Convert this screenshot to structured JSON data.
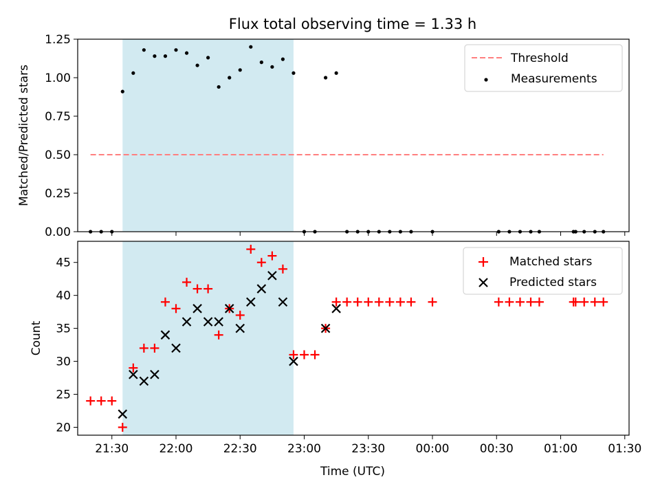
{
  "chart_data": {
    "title": "Flux total observing time = 1.33 h",
    "xlabel": "Time (UTC)",
    "x_ticks": [
      "21:30",
      "22:00",
      "22:30",
      "23:00",
      "23:30",
      "00:00",
      "00:30",
      "01:00",
      "01:30"
    ],
    "x_range": [
      "21:14",
      "01:32"
    ],
    "shaded_interval": [
      "21:35",
      "22:55"
    ],
    "colors": {
      "shade": "#add8e6",
      "threshold": "#ff7f7f",
      "measurements": "#000000",
      "matched": "#ff0000",
      "predicted": "#000000"
    },
    "panels": [
      {
        "type": "scatter",
        "ylabel": "Matched/Predicted stars",
        "ylim": [
          0.0,
          1.25
        ],
        "y_ticks": [
          "0.00",
          "0.25",
          "0.50",
          "0.75",
          "1.00",
          "1.25"
        ],
        "legend": {
          "position": "top-right",
          "entries": [
            "Threshold",
            "Measurements"
          ]
        },
        "threshold": {
          "name": "Threshold",
          "y": 0.5,
          "x_start": "21:20",
          "x_end": "01:20"
        },
        "series": [
          {
            "name": "Measurements",
            "points": [
              [
                "21:20",
                0.0
              ],
              [
                "21:25",
                0.0
              ],
              [
                "21:30",
                0.0
              ],
              [
                "21:35",
                0.91
              ],
              [
                "21:40",
                1.03
              ],
              [
                "21:45",
                1.18
              ],
              [
                "21:50",
                1.14
              ],
              [
                "21:55",
                1.14
              ],
              [
                "22:00",
                1.18
              ],
              [
                "22:05",
                1.16
              ],
              [
                "22:10",
                1.08
              ],
              [
                "22:15",
                1.13
              ],
              [
                "22:20",
                0.94
              ],
              [
                "22:25",
                1.0
              ],
              [
                "22:30",
                1.05
              ],
              [
                "22:35",
                1.2
              ],
              [
                "22:40",
                1.1
              ],
              [
                "22:45",
                1.07
              ],
              [
                "22:50",
                1.12
              ],
              [
                "22:55",
                1.03
              ],
              [
                "23:00",
                0.0
              ],
              [
                "23:05",
                0.0
              ],
              [
                "23:10",
                1.0
              ],
              [
                "23:15",
                1.03
              ],
              [
                "23:20",
                0.0
              ],
              [
                "23:25",
                0.0
              ],
              [
                "23:30",
                0.0
              ],
              [
                "23:35",
                0.0
              ],
              [
                "23:40",
                0.0
              ],
              [
                "23:45",
                0.0
              ],
              [
                "23:50",
                0.0
              ],
              [
                "00:00",
                0.0
              ],
              [
                "00:31",
                0.0
              ],
              [
                "00:36",
                0.0
              ],
              [
                "00:41",
                0.0
              ],
              [
                "00:46",
                0.0
              ],
              [
                "00:50",
                0.0
              ],
              [
                "01:06",
                0.0
              ],
              [
                "01:07",
                0.0
              ],
              [
                "01:11",
                0.0
              ],
              [
                "01:16",
                0.0
              ],
              [
                "01:20",
                0.0
              ]
            ]
          }
        ]
      },
      {
        "type": "scatter",
        "ylabel": "Count",
        "ylim": [
          18.8,
          48.2
        ],
        "y_ticks": [
          "20",
          "25",
          "30",
          "35",
          "40",
          "45"
        ],
        "legend": {
          "position": "top-right",
          "entries": [
            "Matched stars",
            "Predicted stars"
          ]
        },
        "series": [
          {
            "name": "Matched stars",
            "marker": "plus",
            "points": [
              [
                "21:20",
                24
              ],
              [
                "21:25",
                24
              ],
              [
                "21:30",
                24
              ],
              [
                "21:35",
                20
              ],
              [
                "21:40",
                29
              ],
              [
                "21:45",
                32
              ],
              [
                "21:50",
                32
              ],
              [
                "21:55",
                39
              ],
              [
                "22:00",
                38
              ],
              [
                "22:05",
                42
              ],
              [
                "22:10",
                41
              ],
              [
                "22:15",
                41
              ],
              [
                "22:20",
                34
              ],
              [
                "22:25",
                38
              ],
              [
                "22:30",
                37
              ],
              [
                "22:35",
                47
              ],
              [
                "22:40",
                45
              ],
              [
                "22:45",
                46
              ],
              [
                "22:50",
                44
              ],
              [
                "22:55",
                31
              ],
              [
                "23:00",
                31
              ],
              [
                "23:05",
                31
              ],
              [
                "23:10",
                35
              ],
              [
                "23:15",
                39
              ],
              [
                "23:20",
                39
              ],
              [
                "23:25",
                39
              ],
              [
                "23:30",
                39
              ],
              [
                "23:35",
                39
              ],
              [
                "23:40",
                39
              ],
              [
                "23:45",
                39
              ],
              [
                "23:50",
                39
              ],
              [
                "00:00",
                39
              ],
              [
                "00:31",
                39
              ],
              [
                "00:36",
                39
              ],
              [
                "00:41",
                39
              ],
              [
                "00:46",
                39
              ],
              [
                "00:50",
                39
              ],
              [
                "01:06",
                39
              ],
              [
                "01:07",
                39
              ],
              [
                "01:11",
                39
              ],
              [
                "01:16",
                39
              ],
              [
                "01:20",
                39
              ]
            ]
          },
          {
            "name": "Predicted stars",
            "marker": "x",
            "points": [
              [
                "21:35",
                22
              ],
              [
                "21:40",
                28
              ],
              [
                "21:45",
                27
              ],
              [
                "21:50",
                28
              ],
              [
                "21:55",
                34
              ],
              [
                "22:00",
                32
              ],
              [
                "22:05",
                36
              ],
              [
                "22:10",
                38
              ],
              [
                "22:15",
                36
              ],
              [
                "22:20",
                36
              ],
              [
                "22:25",
                38
              ],
              [
                "22:30",
                35
              ],
              [
                "22:35",
                39
              ],
              [
                "22:40",
                41
              ],
              [
                "22:45",
                43
              ],
              [
                "22:50",
                39
              ],
              [
                "22:55",
                30
              ],
              [
                "23:10",
                35
              ],
              [
                "23:15",
                38
              ]
            ]
          }
        ]
      }
    ]
  }
}
